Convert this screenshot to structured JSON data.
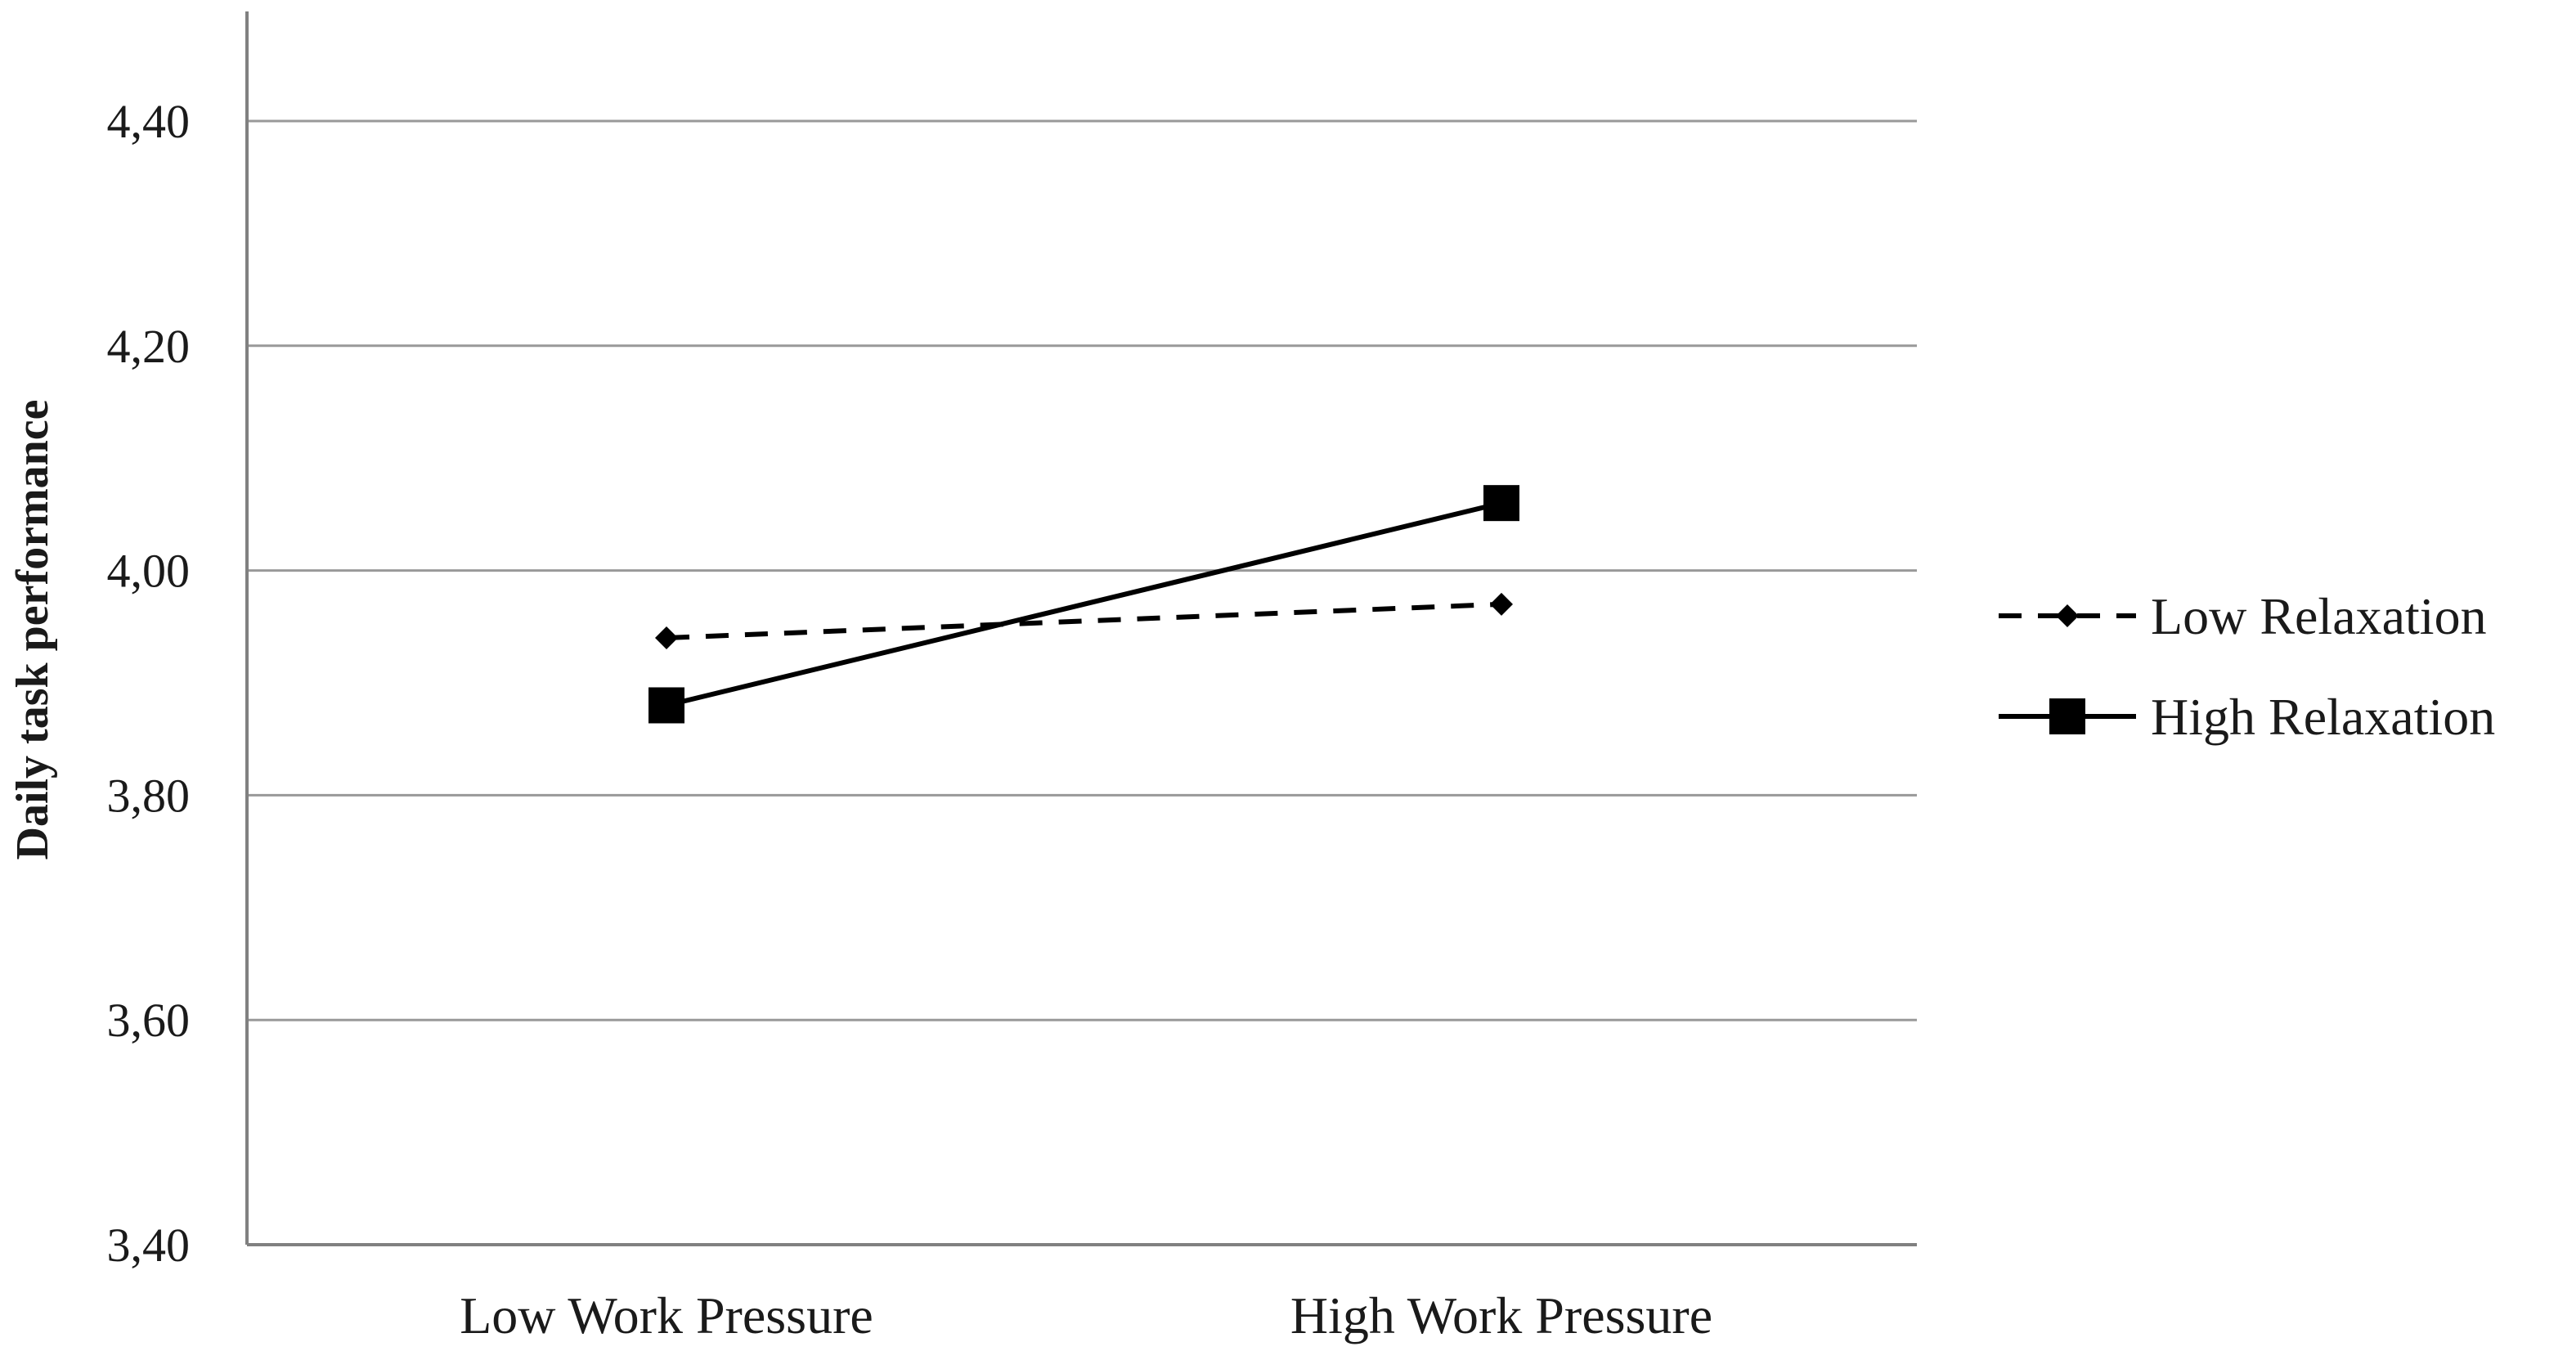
{
  "chart_data": {
    "type": "line",
    "title": "",
    "xlabel": "",
    "ylabel": "Daily task performance",
    "categories": [
      "Low Work Pressure",
      "High Work Pressure"
    ],
    "ylim": [
      3.4,
      4.5
    ],
    "yticks": [
      "3,40",
      "3,60",
      "3,80",
      "4,00",
      "4,20",
      "4,40"
    ],
    "ytick_values": [
      3.4,
      3.6,
      3.8,
      4.0,
      4.2,
      4.4
    ],
    "grid": true,
    "legend_position": "right",
    "series": [
      {
        "name": "Low Relaxation",
        "values": [
          3.94,
          3.97
        ],
        "line_style": "dashed",
        "marker": "diamond",
        "color": "#000000"
      },
      {
        "name": "High Relaxation",
        "values": [
          3.88,
          4.06
        ],
        "line_style": "solid",
        "marker": "square",
        "color": "#000000"
      }
    ]
  }
}
